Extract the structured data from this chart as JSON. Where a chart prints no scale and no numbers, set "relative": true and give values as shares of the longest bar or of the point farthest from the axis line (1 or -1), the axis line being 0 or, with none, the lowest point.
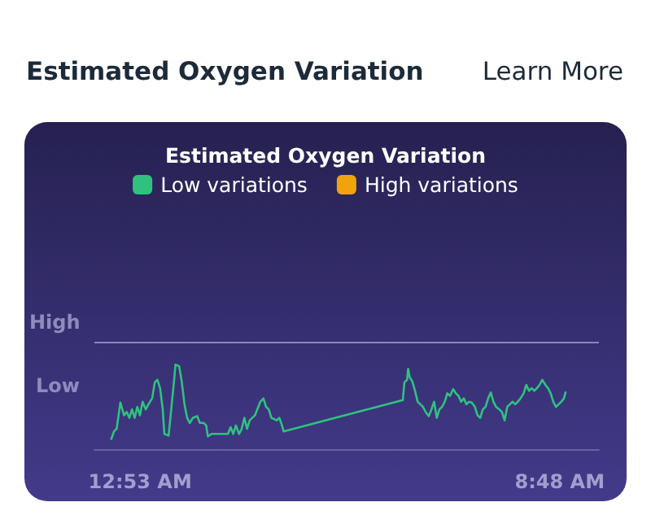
{
  "chart_data": {
    "type": "line",
    "title": "Estimated Oxygen Variation",
    "relative": true,
    "legend": "top",
    "grid": false,
    "marker": "none",
    "line_style": "solid",
    "annotations": [
      "Estimated Oxygen Variation",
      "Learn More",
      "Low"
    ],
    "xlim": [
      0.02,
      9.54
    ],
    "xticks": [
      {
        "value": 0.883,
        "label": "12:53 AM"
      },
      {
        "value": 8.8,
        "label": "8:48 AM"
      }
    ],
    "ref_lines": [
      {
        "axis": "y",
        "value": 1.27,
        "label": "High",
        "color": "#8a86b8"
      }
    ],
    "series": [
      {
        "name": "Low variations",
        "color": "#2fc27f",
        "x": [
          0.34,
          0.39,
          0.44,
          0.51,
          0.58,
          0.63,
          0.68,
          0.73,
          0.78,
          0.83,
          0.88,
          0.93,
          0.99,
          1.04,
          1.11,
          1.16,
          1.21,
          1.26,
          1.31,
          1.34,
          1.42,
          1.47,
          1.52,
          1.55,
          1.62,
          1.67,
          1.72,
          1.77,
          1.82,
          1.88,
          1.96,
          2.01,
          2.08,
          2.13,
          2.16,
          2.23,
          2.54,
          2.59,
          2.64,
          2.69,
          2.75,
          2.8,
          2.85,
          2.9,
          2.95,
          3.05,
          3.15,
          3.21,
          3.26,
          3.31,
          3.36,
          3.46,
          3.51,
          3.56,
          3.59,
          5.84,
          5.87,
          5.92,
          5.94,
          5.97,
          6.02,
          6.07,
          6.12,
          6.17,
          6.22,
          6.27,
          6.33,
          6.38,
          6.43,
          6.48,
          6.53,
          6.58,
          6.63,
          6.68,
          6.73,
          6.79,
          6.84,
          6.89,
          6.94,
          6.99,
          7.04,
          7.09,
          7.14,
          7.2,
          7.25,
          7.3,
          7.35,
          7.4,
          7.45,
          7.5,
          7.55,
          7.6,
          7.66,
          7.71,
          7.76,
          7.81,
          7.86,
          7.91,
          7.96,
          8.01,
          8.06,
          8.12,
          8.17,
          8.22,
          8.27,
          8.32,
          8.37,
          8.42,
          8.47,
          8.53,
          8.58,
          8.63,
          8.68,
          8.73,
          8.78,
          8.83,
          8.88,
          8.91
        ],
        "values": [
          0.12,
          0.21,
          0.24,
          0.55,
          0.4,
          0.44,
          0.37,
          0.47,
          0.37,
          0.5,
          0.4,
          0.56,
          0.47,
          0.53,
          0.6,
          0.79,
          0.82,
          0.72,
          0.47,
          0.18,
          0.16,
          0.47,
          0.79,
          1,
          0.98,
          0.79,
          0.53,
          0.37,
          0.31,
          0.37,
          0.39,
          0.31,
          0.31,
          0.28,
          0.15,
          0.18,
          0.18,
          0.26,
          0.18,
          0.28,
          0.18,
          0.24,
          0.37,
          0.24,
          0.34,
          0.4,
          0.56,
          0.6,
          0.5,
          0.47,
          0.37,
          0.34,
          0.37,
          0.28,
          0.21,
          0.58,
          0.79,
          0.82,
          0.95,
          0.85,
          0.8,
          0.69,
          0.56,
          0.53,
          0.5,
          0.44,
          0.39,
          0.47,
          0.56,
          0.37,
          0.47,
          0.5,
          0.56,
          0.66,
          0.63,
          0.71,
          0.66,
          0.63,
          0.56,
          0.6,
          0.53,
          0.56,
          0.55,
          0.5,
          0.4,
          0.37,
          0.47,
          0.5,
          0.6,
          0.67,
          0.56,
          0.5,
          0.47,
          0.44,
          0.34,
          0.5,
          0.53,
          0.56,
          0.53,
          0.56,
          0.6,
          0.66,
          0.76,
          0.69,
          0.72,
          0.69,
          0.72,
          0.76,
          0.82,
          0.76,
          0.72,
          0.66,
          0.56,
          0.5,
          0.53,
          0.56,
          0.6,
          0.67
        ]
      },
      {
        "name": "High variations",
        "color": "#f0a30a"
      }
    ]
  }
}
